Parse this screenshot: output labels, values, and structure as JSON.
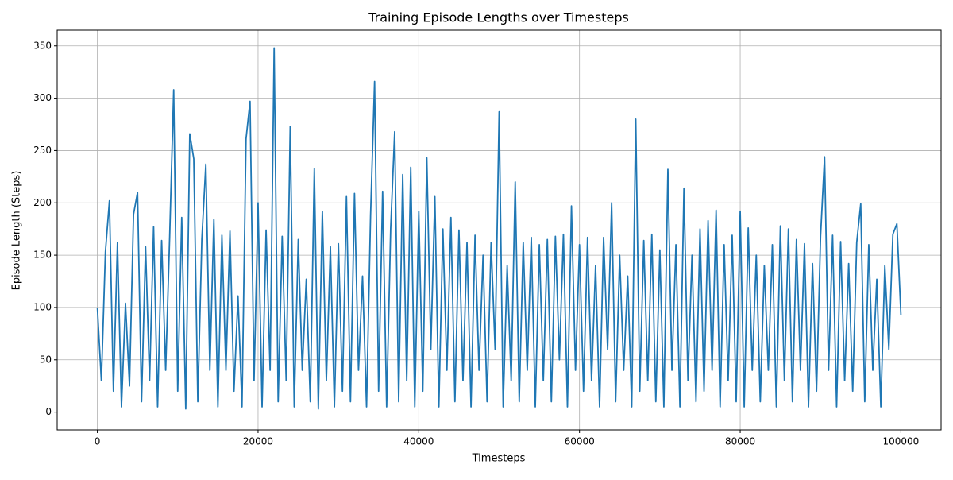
{
  "chart_data": {
    "type": "line",
    "title": "Training Episode Lengths over Timesteps",
    "xlabel": "Timesteps",
    "ylabel": "Episode Length (Steps)",
    "x": [
      0,
      500,
      1000,
      1500,
      2000,
      2500,
      3000,
      3500,
      4000,
      4500,
      5000,
      5500,
      6000,
      6500,
      7000,
      7500,
      8000,
      8500,
      9000,
      9500,
      10000,
      10500,
      11000,
      11500,
      12000,
      12500,
      13000,
      13500,
      14000,
      14500,
      15000,
      15500,
      16000,
      16500,
      17000,
      17500,
      18000,
      18500,
      19000,
      19500,
      20000,
      20500,
      21000,
      21500,
      22000,
      22500,
      23000,
      23500,
      24000,
      24500,
      25000,
      25500,
      26000,
      26500,
      27000,
      27500,
      28000,
      28500,
      29000,
      29500,
      30000,
      30500,
      31000,
      31500,
      32000,
      32500,
      33000,
      33500,
      34000,
      34500,
      35000,
      35500,
      36000,
      36500,
      37000,
      37500,
      38000,
      38500,
      39000,
      39500,
      40000,
      40500,
      41000,
      41500,
      42000,
      42500,
      43000,
      43500,
      44000,
      44500,
      45000,
      45500,
      46000,
      46500,
      47000,
      47500,
      48000,
      48500,
      49000,
      49500,
      50000,
      50500,
      51000,
      51500,
      52000,
      52500,
      53000,
      53500,
      54000,
      54500,
      55000,
      55500,
      56000,
      56500,
      57000,
      57500,
      58000,
      58500,
      59000,
      59500,
      60000,
      60500,
      61000,
      61500,
      62000,
      62500,
      63000,
      63500,
      64000,
      64500,
      65000,
      65500,
      66000,
      66500,
      67000,
      67500,
      68000,
      68500,
      69000,
      69500,
      70000,
      70500,
      71000,
      71500,
      72000,
      72500,
      73000,
      73500,
      74000,
      74500,
      75000,
      75500,
      76000,
      76500,
      77000,
      77500,
      78000,
      78500,
      79000,
      79500,
      80000,
      80500,
      81000,
      81500,
      82000,
      82500,
      83000,
      83500,
      84000,
      84500,
      85000,
      85500,
      86000,
      86500,
      87000,
      87500,
      88000,
      88500,
      89000,
      89500,
      90000,
      90500,
      91000,
      91500,
      92000,
      92500,
      93000,
      93500,
      94000,
      94500,
      95000,
      95500,
      96000,
      96500,
      97000,
      97500,
      98000,
      98500,
      99000,
      99500,
      100000
    ],
    "series": [
      {
        "name": "Episode Length",
        "color": "#1f77b4",
        "values": [
          100,
          30,
          153,
          202,
          20,
          162,
          5,
          104,
          25,
          189,
          210,
          10,
          158,
          30,
          177,
          5,
          164,
          40,
          168,
          308,
          20,
          186,
          3,
          266,
          242,
          10,
          165,
          237,
          40,
          184,
          5,
          169,
          40,
          173,
          20,
          111,
          5,
          261,
          297,
          30,
          200,
          5,
          174,
          40,
          348,
          10,
          168,
          30,
          273,
          5,
          165,
          40,
          127,
          10,
          233,
          3,
          192,
          30,
          158,
          5,
          161,
          20,
          206,
          10,
          209,
          40,
          130,
          5,
          188,
          316,
          20,
          211,
          5,
          175,
          268,
          10,
          227,
          30,
          234,
          5,
          192,
          20,
          243,
          60,
          206,
          5,
          175,
          40,
          186,
          10,
          174,
          30,
          162,
          5,
          169,
          40,
          150,
          10,
          162,
          60,
          287,
          5,
          140,
          30,
          220,
          10,
          162,
          40,
          167,
          5,
          160,
          30,
          165,
          10,
          168,
          50,
          170,
          5,
          197,
          40,
          160,
          20,
          167,
          30,
          140,
          5,
          167,
          60,
          200,
          10,
          150,
          40,
          130,
          5,
          280,
          20,
          164,
          30,
          170,
          10,
          155,
          5,
          232,
          40,
          160,
          5,
          214,
          30,
          150,
          10,
          175,
          20,
          183,
          40,
          193,
          5,
          160,
          30,
          169,
          10,
          192,
          5,
          176,
          40,
          150,
          10,
          140,
          40,
          160,
          5,
          178,
          30,
          175,
          10,
          165,
          40,
          161,
          5,
          142,
          20,
          168,
          244,
          40,
          169,
          5,
          163,
          30,
          142,
          20,
          162,
          199,
          10,
          160,
          40,
          127,
          5,
          140,
          60,
          170,
          180,
          93
        ]
      }
    ],
    "xlim": [
      -5000,
      105000
    ],
    "ylim": [
      -17,
      365
    ],
    "xticks": [
      0,
      20000,
      40000,
      60000,
      80000,
      100000
    ],
    "yticks": [
      0,
      50,
      100,
      150,
      200,
      250,
      300,
      350
    ],
    "grid": true
  }
}
